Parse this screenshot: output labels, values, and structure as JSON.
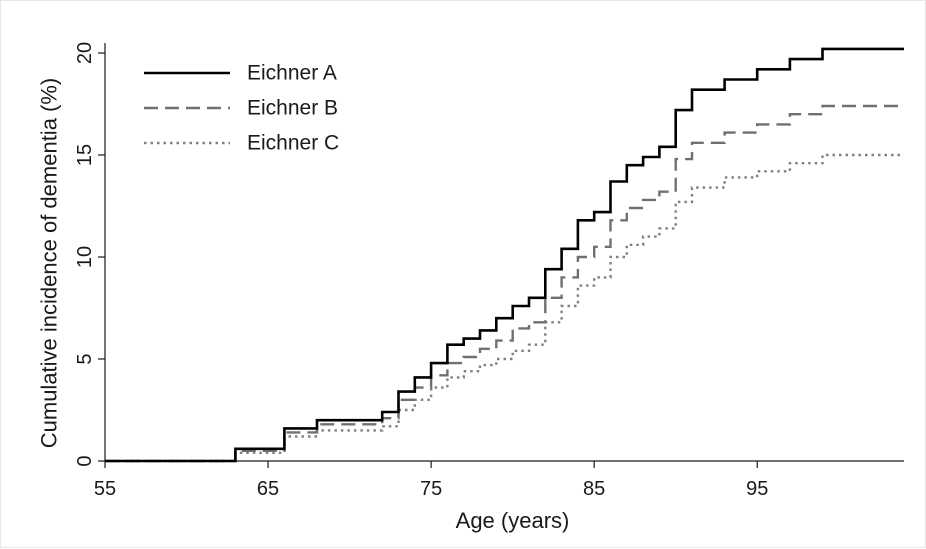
{
  "chart_data": {
    "type": "line",
    "step": true,
    "xlabel": "Age (years)",
    "ylabel": "Cumulative incidence of dementia (%)",
    "xlim": [
      55,
      104
    ],
    "ylim": [
      0,
      20
    ],
    "xticks": [
      "55",
      "65",
      "75",
      "85",
      "95"
    ],
    "yticks": [
      "0",
      "5",
      "10",
      "15",
      "20"
    ],
    "grid": false,
    "legend_position": "top-left",
    "series": [
      {
        "name": "Eichner A",
        "style": "solid",
        "color": "#000000",
        "points": [
          [
            55,
            0
          ],
          [
            63,
            0.6
          ],
          [
            66,
            1.6
          ],
          [
            68,
            2.0
          ],
          [
            72,
            2.4
          ],
          [
            73,
            3.4
          ],
          [
            74,
            4.1
          ],
          [
            75,
            4.8
          ],
          [
            76,
            5.7
          ],
          [
            77,
            6.0
          ],
          [
            78,
            6.4
          ],
          [
            79,
            7.0
          ],
          [
            80,
            7.6
          ],
          [
            81,
            8.0
          ],
          [
            82,
            9.4
          ],
          [
            83,
            10.4
          ],
          [
            84,
            11.8
          ],
          [
            85,
            12.2
          ],
          [
            86,
            13.7
          ],
          [
            87,
            14.5
          ],
          [
            88,
            14.9
          ],
          [
            89,
            15.4
          ],
          [
            90,
            17.2
          ],
          [
            91,
            18.2
          ],
          [
            93,
            18.7
          ],
          [
            95,
            19.2
          ],
          [
            97,
            19.7
          ],
          [
            99,
            20.2
          ],
          [
            104,
            20.2
          ]
        ]
      },
      {
        "name": "Eichner B",
        "style": "dashed",
        "color": "#707070",
        "points": [
          [
            55,
            0
          ],
          [
            63,
            0.5
          ],
          [
            66,
            1.4
          ],
          [
            68,
            1.8
          ],
          [
            72,
            2.1
          ],
          [
            73,
            3.0
          ],
          [
            74,
            3.6
          ],
          [
            75,
            4.2
          ],
          [
            76,
            4.8
          ],
          [
            77,
            5.1
          ],
          [
            78,
            5.5
          ],
          [
            79,
            5.9
          ],
          [
            80,
            6.5
          ],
          [
            81,
            6.8
          ],
          [
            82,
            8.0
          ],
          [
            83,
            9.0
          ],
          [
            84,
            10.0
          ],
          [
            85,
            10.5
          ],
          [
            86,
            11.8
          ],
          [
            87,
            12.4
          ],
          [
            88,
            12.8
          ],
          [
            89,
            13.2
          ],
          [
            90,
            14.8
          ],
          [
            91,
            15.6
          ],
          [
            93,
            16.1
          ],
          [
            95,
            16.5
          ],
          [
            97,
            17.0
          ],
          [
            99,
            17.4
          ],
          [
            104,
            17.4
          ]
        ]
      },
      {
        "name": "Eichner C",
        "style": "dotted",
        "color": "#808080",
        "points": [
          [
            55,
            0
          ],
          [
            63,
            0.4
          ],
          [
            66,
            1.2
          ],
          [
            68,
            1.5
          ],
          [
            72,
            1.7
          ],
          [
            73,
            2.5
          ],
          [
            74,
            3.0
          ],
          [
            75,
            3.6
          ],
          [
            76,
            4.1
          ],
          [
            77,
            4.4
          ],
          [
            78,
            4.7
          ],
          [
            79,
            5.0
          ],
          [
            80,
            5.4
          ],
          [
            81,
            5.7
          ],
          [
            82,
            6.8
          ],
          [
            83,
            7.6
          ],
          [
            84,
            8.6
          ],
          [
            85,
            9.0
          ],
          [
            86,
            10.0
          ],
          [
            87,
            10.6
          ],
          [
            88,
            11.0
          ],
          [
            89,
            11.4
          ],
          [
            90,
            12.7
          ],
          [
            91,
            13.4
          ],
          [
            93,
            13.9
          ],
          [
            95,
            14.2
          ],
          [
            97,
            14.6
          ],
          [
            99,
            15.0
          ],
          [
            104,
            15.0
          ]
        ]
      }
    ]
  }
}
